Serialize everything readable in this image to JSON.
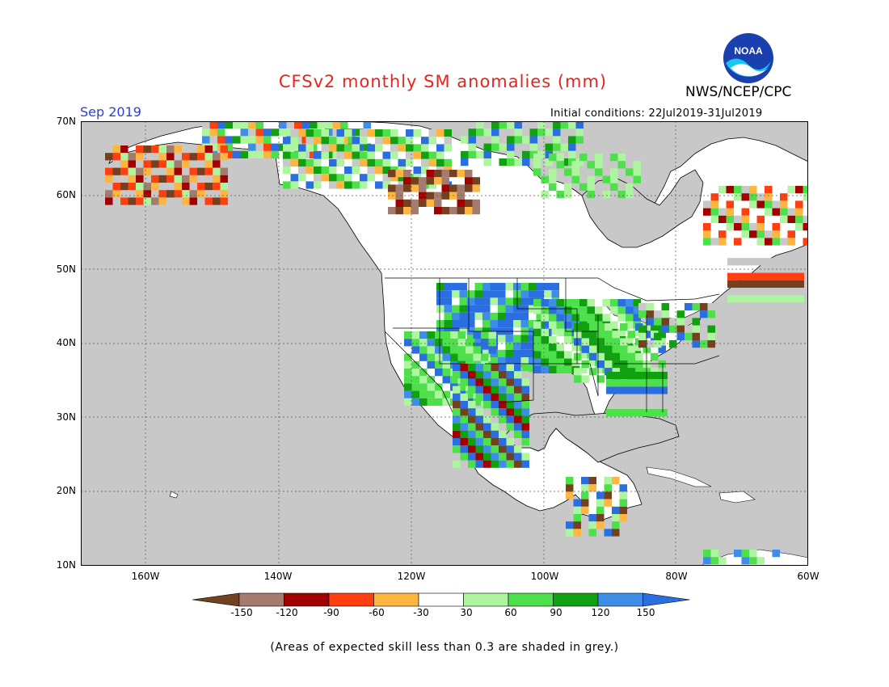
{
  "title": "CFSv2 monthly SM anomalies (mm)",
  "organization": "NWS/NCEP/CPC",
  "logo_text": "NOAA",
  "valid_month": "Sep 2019",
  "initial_conditions": "Initial conditions: 22Jul2019-31Jul2019",
  "lat_labels": [
    "70N",
    "60N",
    "50N",
    "40N",
    "30N",
    "20N",
    "10N"
  ],
  "lon_labels": [
    "160W",
    "140W",
    "120W",
    "100W",
    "80W",
    "60W"
  ],
  "colorbar": {
    "labels": [
      "-150",
      "-120",
      "-90",
      "-60",
      "-30",
      "30",
      "60",
      "90",
      "120",
      "150"
    ],
    "colors": [
      "#744120",
      "#a37c6f",
      "#a00000",
      "#ff3f10",
      "#ffb640",
      "#ffffff",
      "#aef5a0",
      "#4ee04a",
      "#10a010",
      "#3e8ee8",
      "#2a6ee0"
    ]
  },
  "footnote": "(Areas of expected skill less than 0.3 are shaded in grey.)",
  "colors": {
    "ocean": "#c8c8c8",
    "land": "#ffffff",
    "title": "#e8251d",
    "month": "#2a3fd8"
  }
}
